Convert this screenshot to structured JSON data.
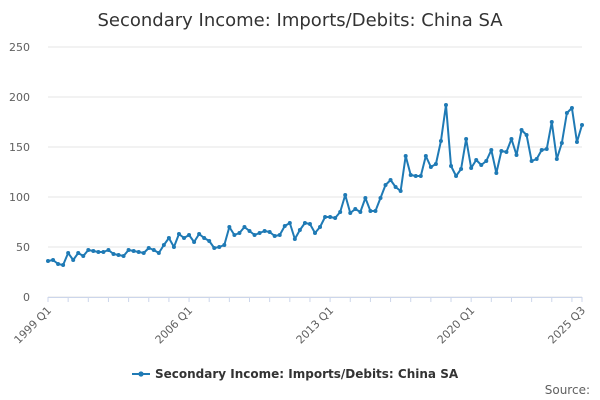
{
  "chart_data": {
    "type": "line",
    "title": "Secondary Income: Imports/Debits: China SA",
    "xlabel": "",
    "ylabel": "",
    "ylim": [
      0,
      250
    ],
    "yticks": [
      0,
      50,
      100,
      150,
      200,
      250
    ],
    "xtick_labels": [
      "1999 Q1",
      "2006 Q1",
      "2013 Q1",
      "2020 Q1",
      "2025 Q3"
    ],
    "grid": true,
    "legend": "bottom",
    "series_color": "#1f7ab5",
    "series": [
      {
        "name": "Secondary Income: Imports/Debits: China SA",
        "x_start": "1999 Q1",
        "x_end": "2025 Q3",
        "values": [
          36,
          37,
          33,
          32,
          44,
          37,
          44,
          41,
          47,
          46,
          45,
          45,
          47,
          43,
          42,
          41,
          47,
          46,
          45,
          44,
          49,
          47,
          44,
          52,
          59,
          50,
          63,
          59,
          62,
          55,
          63,
          59,
          56,
          49,
          50,
          52,
          70,
          62,
          64,
          70,
          66,
          62,
          64,
          66,
          65,
          61,
          62,
          71,
          74,
          58,
          67,
          74,
          73,
          64,
          70,
          80,
          80,
          79,
          85,
          102,
          84,
          88,
          85,
          99,
          86,
          86,
          99,
          112,
          117,
          110,
          106,
          141,
          122,
          121,
          121,
          141,
          130,
          133,
          156,
          192,
          131,
          121,
          128,
          158,
          129,
          137,
          132,
          136,
          147,
          124,
          146,
          145,
          158,
          142,
          167,
          162,
          136,
          138,
          147,
          148,
          175,
          138,
          154,
          184,
          189,
          155,
          172
        ]
      }
    ]
  },
  "legend": {
    "label": "Secondary Income: Imports/Debits: China SA"
  },
  "footer": {
    "source": "Source:"
  }
}
